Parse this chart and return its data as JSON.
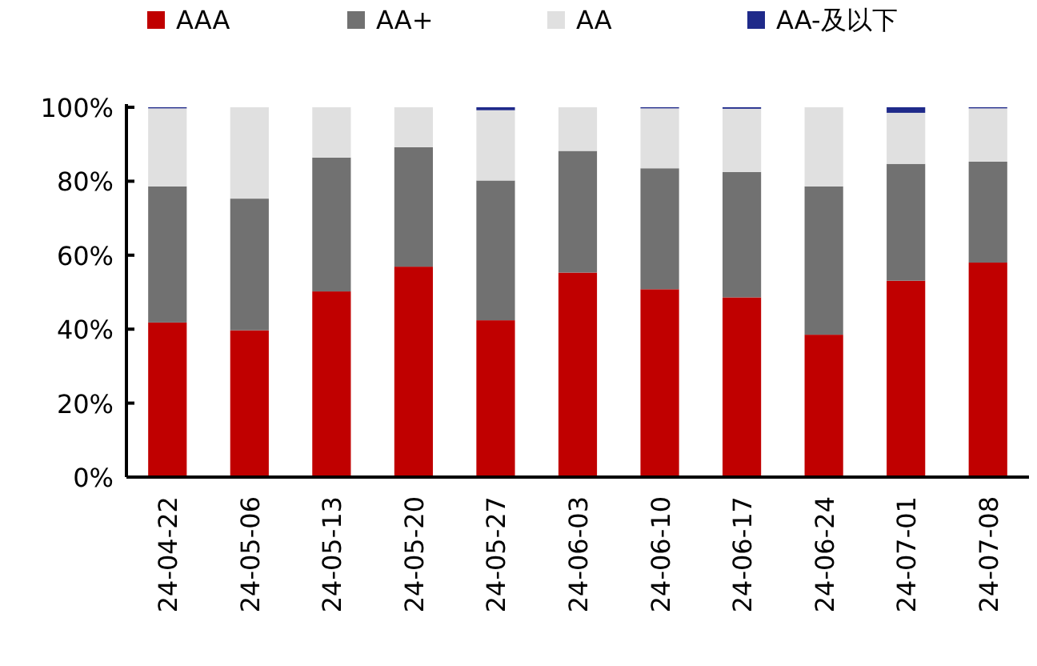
{
  "chart_data": {
    "type": "bar",
    "stacked": true,
    "categories": [
      "24-04-22",
      "24-05-06",
      "24-05-13",
      "24-05-20",
      "24-05-27",
      "24-06-03",
      "24-06-10",
      "24-06-17",
      "24-06-24",
      "24-07-01",
      "24-07-08"
    ],
    "series": [
      {
        "name": "AAA",
        "color": "#c00000",
        "values": [
          41.8,
          39.7,
          50.2,
          56.9,
          42.4,
          55.3,
          50.8,
          48.6,
          38.5,
          53.1,
          58.0
        ]
      },
      {
        "name": "AA+",
        "color": "#717171",
        "values": [
          36.8,
          35.6,
          36.2,
          32.3,
          37.8,
          32.9,
          32.7,
          33.9,
          40.1,
          31.6,
          27.3
        ]
      },
      {
        "name": "AA",
        "color": "#e0e0e0",
        "values": [
          21.1,
          24.7,
          13.6,
          10.8,
          19.0,
          11.8,
          16.2,
          17.1,
          21.4,
          13.8,
          14.4
        ]
      },
      {
        "name": "AA-及以下",
        "color": "#1f2a8a",
        "values": [
          0.3,
          0,
          0,
          0,
          0.8,
          0,
          0.3,
          0.4,
          0,
          1.5,
          0.3
        ]
      }
    ],
    "ylim": [
      0,
      100
    ],
    "yticks": [
      {
        "value": 0,
        "label": "0%"
      },
      {
        "value": 20,
        "label": "20%"
      },
      {
        "value": 40,
        "label": "40%"
      },
      {
        "value": 60,
        "label": "60%"
      },
      {
        "value": 80,
        "label": "80%"
      },
      {
        "value": 100,
        "label": "100%"
      }
    ],
    "grid": false,
    "legend": "top"
  }
}
